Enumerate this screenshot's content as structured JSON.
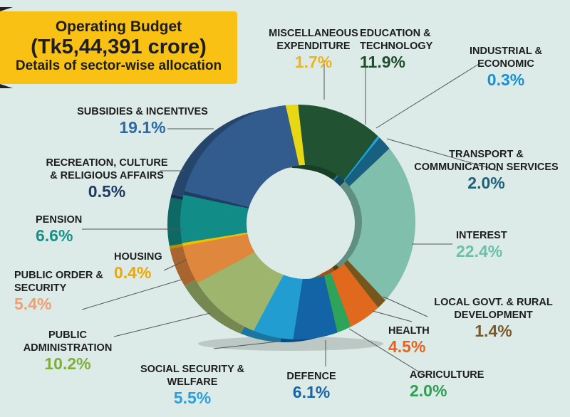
{
  "title": {
    "line1": "Operating Budget",
    "line2": "(Tk5,44,391 crore)",
    "line3": "Details of sector-wise allocation"
  },
  "chart_data": {
    "type": "pie",
    "style": "3d donut",
    "start": "top, clockwise",
    "slices": [
      {
        "name": "MISCELLANEOUS EXPENDITURE",
        "value": 1.7,
        "label": "1.7%",
        "color": "#e8d714",
        "text_color": "#f0b31a"
      },
      {
        "name": "EDUCATION & TECHNOLOGY",
        "value": 11.9,
        "label": "11.9%",
        "color": "#215232",
        "text_color": "#1f4d2c"
      },
      {
        "name": "INDUSTRIAL & ECONOMIC",
        "value": 0.3,
        "label": "0.3%",
        "color": "#1aa6e0",
        "text_color": "#1a8fd0"
      },
      {
        "name": "TRANSPORT & COMMUNICATION SERVICES",
        "value": 2.0,
        "label": "2.0%",
        "color": "#17607f",
        "text_color": "#1e5f7a"
      },
      {
        "name": "INTEREST",
        "value": 22.4,
        "label": "22.4%",
        "color": "#80bfab",
        "text_color": "#6cc0a8"
      },
      {
        "name": "LOCAL GOVT. & RURAL DEVELOPMENT",
        "value": 1.4,
        "label": "1.4%",
        "color": "#77561e",
        "text_color": "#7a5a2a"
      },
      {
        "name": "HEALTH",
        "value": 4.5,
        "label": "4.5%",
        "color": "#e0691e",
        "text_color": "#e8641e"
      },
      {
        "name": "AGRICULTURE",
        "value": 2.0,
        "label": "2.0%",
        "color": "#2ea35a",
        "text_color": "#2aa050"
      },
      {
        "name": "DEFENCE",
        "value": 6.1,
        "label": "6.1%",
        "color": "#1264a6",
        "text_color": "#1565a8"
      },
      {
        "name": "SOCIAL SECURITY & WELFARE",
        "value": 5.5,
        "label": "5.5%",
        "color": "#229dd2",
        "text_color": "#2d9fd8"
      },
      {
        "name": "PUBLIC ADMINISTRATION",
        "value": 10.2,
        "label": "10.2%",
        "color": "#9db56c",
        "text_color": "#7fae3a"
      },
      {
        "name": "PUBLIC ORDER & SECURITY",
        "value": 5.4,
        "label": "5.4%",
        "color": "#e0873e",
        "text_color": "#f0a070"
      },
      {
        "name": "HOUSING",
        "value": 0.4,
        "label": "0.4%",
        "color": "#f0c000",
        "text_color": "#f0a800"
      },
      {
        "name": "PENSION",
        "value": 6.6,
        "label": "6.6%",
        "color": "#128c86",
        "text_color": "#1a9088"
      },
      {
        "name": "RECREATION, CULTURE & RELIGIOUS AFFAIRS",
        "value": 0.5,
        "label": "0.5%",
        "color": "#1e3e66",
        "text_color": "#1e3a5f"
      },
      {
        "name": "SUBSIDIES & INCENTIVES",
        "value": 19.1,
        "label": "19.1%",
        "color": "#325c8e",
        "text_color": "#2a6aa8"
      }
    ]
  }
}
